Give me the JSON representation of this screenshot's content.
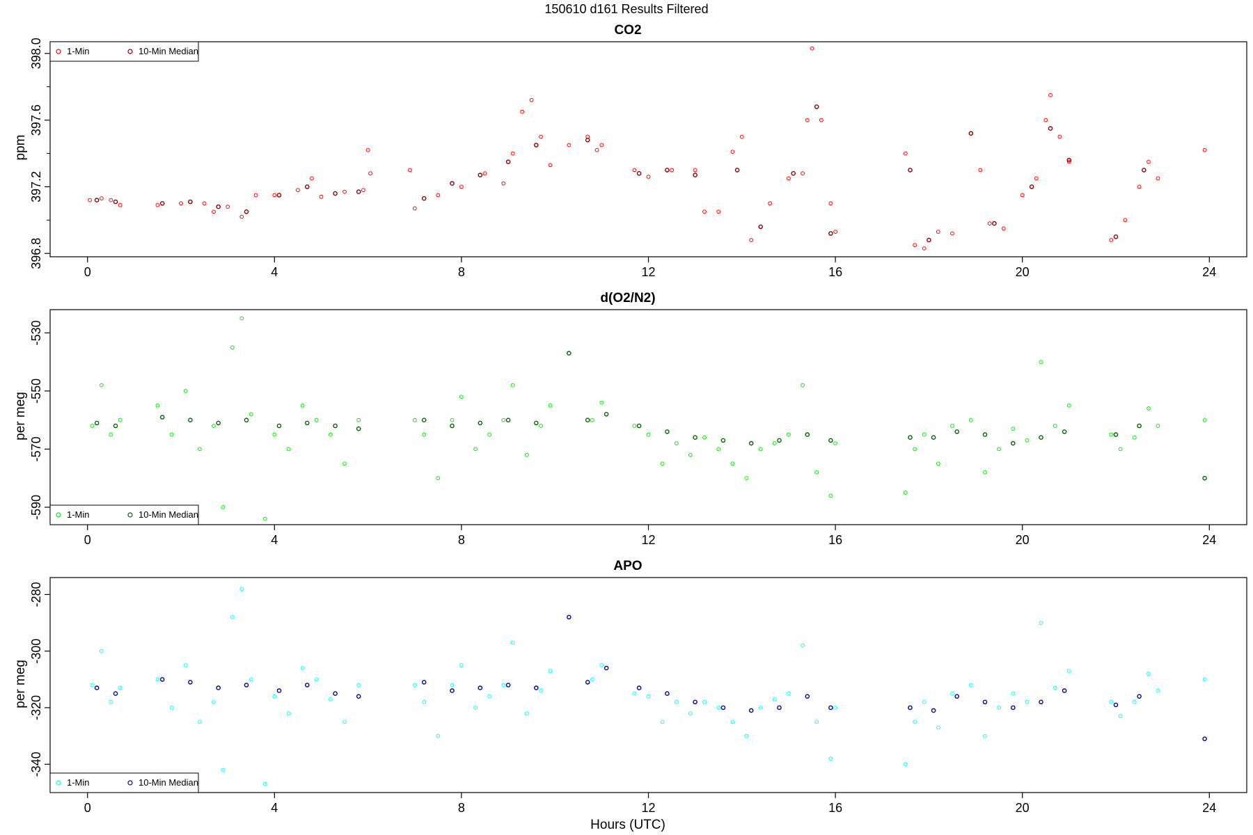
{
  "header": {
    "title": "150610   d161   Results Filtered"
  },
  "x_axis": {
    "label": "Hours (UTC)",
    "range": [
      -0.8,
      24.8
    ],
    "ticks": [
      0,
      4,
      8,
      12,
      16,
      20,
      24
    ]
  },
  "panels": [
    {
      "title": "CO2",
      "ylabel": "ppm",
      "yrange": [
        396.78,
        398.07
      ],
      "yticks": [
        396.8,
        397.2,
        397.6,
        398.0
      ],
      "ytick_labels": [
        "396.8",
        "397.2",
        "397.6",
        "398.0"
      ],
      "legend": {
        "position": "top-left",
        "items": [
          "1-Min",
          "10-Min Median"
        ]
      },
      "colors": {
        "raw": "#ff0000",
        "median": "#8b0000"
      }
    },
    {
      "title": "d(O2/N2)",
      "ylabel": "per meg",
      "yrange": [
        -596,
        -522
      ],
      "yticks": [
        -530,
        -550,
        -570,
        -590
      ],
      "ytick_labels": [
        "-530",
        "-550",
        "-570",
        "-590"
      ],
      "legend": {
        "position": "bottom-left",
        "items": [
          "1-Min",
          "10-Min Median"
        ]
      },
      "colors": {
        "raw": "#00ee00",
        "median": "#006400"
      }
    },
    {
      "title": "APO",
      "ylabel": "per meg",
      "yrange": [
        -350,
        -274
      ],
      "yticks": [
        -280,
        -300,
        -320,
        -340
      ],
      "ytick_labels": [
        "-280",
        "-300",
        "-320",
        "-340"
      ],
      "legend": {
        "position": "bottom-left",
        "items": [
          "1-Min",
          "10-Min Median"
        ]
      },
      "colors": {
        "raw": "#00ffff",
        "median": "#00008b"
      }
    }
  ],
  "chart_data": [
    {
      "type": "scatter",
      "title": "CO2",
      "ylabel": "ppm",
      "xlabel": "",
      "xlim": [
        -0.8,
        24.8
      ],
      "ylim": [
        396.78,
        398.07
      ],
      "series": [
        {
          "name": "1-Min",
          "color": "#ff0000",
          "x": [
            0.05,
            0.3,
            0.5,
            0.7,
            1.5,
            2.0,
            2.5,
            2.7,
            3.0,
            3.3,
            3.6,
            4.0,
            4.5,
            4.8,
            5.0,
            5.5,
            5.9,
            6.0,
            6.05,
            6.9,
            7.0,
            7.5,
            8.0,
            8.5,
            8.9,
            9.1,
            9.3,
            9.5,
            9.7,
            9.9,
            10.3,
            10.7,
            10.9,
            11.0,
            11.7,
            12.0,
            12.5,
            13.0,
            13.2,
            13.5,
            13.8,
            14.0,
            14.2,
            14.4,
            14.6,
            15.0,
            15.3,
            15.4,
            15.5,
            15.7,
            15.9,
            16.0,
            17.5,
            17.7,
            17.9,
            18.2,
            18.5,
            18.9,
            19.1,
            19.3,
            19.6,
            20.0,
            20.3,
            20.5,
            20.6,
            20.8,
            21.0,
            21.9,
            22.2,
            22.5,
            22.7,
            22.9,
            23.9
          ],
          "y": [
            397.12,
            397.13,
            397.12,
            397.09,
            397.09,
            397.1,
            397.1,
            397.05,
            397.08,
            397.02,
            397.15,
            397.15,
            397.18,
            397.25,
            397.14,
            397.17,
            397.18,
            397.42,
            397.28,
            397.3,
            397.07,
            397.15,
            397.2,
            397.28,
            397.22,
            397.4,
            397.65,
            397.72,
            397.5,
            397.33,
            397.45,
            397.5,
            397.42,
            397.45,
            397.3,
            397.26,
            397.3,
            397.3,
            397.05,
            397.05,
            397.41,
            397.5,
            396.88,
            396.96,
            397.1,
            397.25,
            397.28,
            397.6,
            398.03,
            397.6,
            397.1,
            396.93,
            397.4,
            396.85,
            396.83,
            396.93,
            396.92,
            397.52,
            397.3,
            396.98,
            396.95,
            397.15,
            397.25,
            397.6,
            397.75,
            397.5,
            397.35,
            396.88,
            397.0,
            397.2,
            397.35,
            397.25,
            397.42
          ]
        },
        {
          "name": "10-Min Median",
          "color": "#8b0000",
          "x": [
            0.2,
            0.6,
            1.6,
            2.2,
            2.8,
            3.4,
            4.1,
            4.7,
            5.3,
            5.8,
            7.2,
            7.8,
            8.4,
            9.0,
            9.6,
            10.7,
            11.8,
            12.4,
            13.0,
            13.9,
            14.4,
            15.1,
            15.6,
            15.9,
            17.6,
            18.0,
            18.9,
            19.4,
            20.2,
            20.6,
            21.0,
            22.0,
            22.6
          ],
          "y": [
            397.12,
            397.11,
            397.1,
            397.11,
            397.08,
            397.05,
            397.15,
            397.2,
            397.16,
            397.17,
            397.13,
            397.22,
            397.27,
            397.35,
            397.45,
            397.48,
            397.28,
            397.3,
            397.27,
            397.3,
            396.96,
            397.28,
            397.68,
            396.92,
            397.3,
            396.88,
            397.52,
            396.98,
            397.2,
            397.55,
            397.36,
            396.9,
            397.3
          ]
        }
      ]
    },
    {
      "type": "scatter",
      "title": "d(O2/N2)",
      "ylabel": "per meg",
      "xlabel": "",
      "xlim": [
        -0.8,
        24.8
      ],
      "ylim": [
        -596,
        -522
      ],
      "series": [
        {
          "name": "1-Min",
          "color": "#00ee00",
          "x": [
            0.1,
            0.3,
            0.5,
            0.7,
            1.5,
            1.8,
            2.1,
            2.4,
            2.7,
            2.9,
            3.1,
            3.3,
            3.5,
            3.8,
            4.0,
            4.3,
            4.6,
            4.9,
            5.2,
            5.5,
            5.8,
            7.0,
            7.2,
            7.5,
            7.8,
            8.0,
            8.3,
            8.6,
            8.9,
            9.1,
            9.4,
            9.7,
            9.9,
            10.8,
            11.0,
            11.7,
            12.0,
            12.3,
            12.6,
            12.9,
            13.2,
            13.5,
            13.8,
            14.1,
            14.4,
            14.7,
            15.0,
            15.3,
            15.6,
            15.9,
            16.0,
            17.5,
            17.7,
            17.9,
            18.2,
            18.5,
            18.9,
            19.2,
            19.5,
            19.8,
            20.1,
            20.4,
            20.7,
            21.0,
            21.9,
            22.1,
            22.4,
            22.7,
            22.9,
            23.9
          ],
          "y": [
            -562,
            -548,
            -565,
            -560,
            -555,
            -565,
            -550,
            -570,
            -562,
            -590,
            -535,
            -525,
            -558,
            -594,
            -565,
            -570,
            -555,
            -560,
            -565,
            -575,
            -560,
            -560,
            -565,
            -580,
            -560,
            -552,
            -570,
            -565,
            -560,
            -548,
            -572,
            -562,
            -555,
            -560,
            -554,
            -562,
            -565,
            -575,
            -568,
            -572,
            -566,
            -570,
            -575,
            -580,
            -570,
            -568,
            -565,
            -548,
            -578,
            -586,
            -568,
            -585,
            -570,
            -565,
            -575,
            -562,
            -560,
            -578,
            -570,
            -563,
            -567,
            -540,
            -562,
            -555,
            -565,
            -570,
            -566,
            -556,
            -562,
            -560
          ]
        },
        {
          "name": "10-Min Median",
          "color": "#006400",
          "x": [
            0.2,
            0.6,
            1.6,
            2.2,
            2.8,
            3.4,
            4.1,
            4.7,
            5.3,
            5.8,
            7.2,
            7.8,
            8.4,
            9.0,
            9.6,
            10.3,
            10.7,
            11.1,
            11.8,
            12.4,
            13.0,
            13.6,
            14.2,
            14.8,
            15.4,
            15.9,
            17.6,
            18.1,
            18.6,
            19.2,
            19.8,
            20.4,
            20.9,
            22.0,
            22.5,
            23.9
          ],
          "y": [
            -561,
            -562,
            -559,
            -560,
            -561,
            -560,
            -562,
            -561,
            -562,
            -563,
            -560,
            -562,
            -561,
            -560,
            -561,
            -537,
            -560,
            -558,
            -562,
            -564,
            -566,
            -567,
            -568,
            -567,
            -565,
            -567,
            -566,
            -566,
            -564,
            -565,
            -568,
            -566,
            -564,
            -565,
            -562,
            -580
          ]
        }
      ]
    },
    {
      "type": "scatter",
      "title": "APO",
      "ylabel": "per meg",
      "xlabel": "Hours (UTC)",
      "xlim": [
        -0.8,
        24.8
      ],
      "ylim": [
        -350,
        -274
      ],
      "series": [
        {
          "name": "1-Min",
          "color": "#00ffff",
          "x": [
            0.1,
            0.3,
            0.5,
            0.7,
            1.5,
            1.8,
            2.1,
            2.4,
            2.7,
            2.9,
            3.1,
            3.3,
            3.5,
            3.8,
            4.0,
            4.3,
            4.6,
            4.9,
            5.2,
            5.5,
            5.8,
            7.0,
            7.2,
            7.5,
            7.8,
            8.0,
            8.3,
            8.6,
            8.9,
            9.1,
            9.4,
            9.7,
            9.9,
            10.3,
            10.8,
            11.0,
            11.7,
            12.0,
            12.3,
            12.6,
            12.9,
            13.2,
            13.5,
            13.8,
            14.1,
            14.4,
            14.7,
            15.0,
            15.3,
            15.6,
            15.9,
            16.0,
            17.5,
            17.7,
            17.9,
            18.2,
            18.5,
            18.9,
            19.2,
            19.5,
            19.8,
            20.1,
            20.4,
            20.7,
            21.0,
            21.9,
            22.1,
            22.4,
            22.7,
            22.9,
            23.9
          ],
          "y": [
            -312,
            -300,
            -318,
            -313,
            -310,
            -320,
            -305,
            -325,
            -318,
            -342,
            -288,
            -278,
            -310,
            -347,
            -316,
            -322,
            -306,
            -310,
            -317,
            -325,
            -312,
            -312,
            -318,
            -330,
            -312,
            -305,
            -320,
            -316,
            -312,
            -297,
            -322,
            -314,
            -307,
            -288,
            -310,
            -305,
            -315,
            -316,
            -325,
            -318,
            -322,
            -318,
            -320,
            -325,
            -330,
            -320,
            -317,
            -315,
            -298,
            -325,
            -338,
            -320,
            -340,
            -325,
            -318,
            -327,
            -315,
            -312,
            -330,
            -320,
            -315,
            -318,
            -290,
            -313,
            -307,
            -318,
            -323,
            -318,
            -308,
            -314,
            -310
          ]
        },
        {
          "name": "10-Min Median",
          "color": "#00008b",
          "x": [
            0.2,
            0.6,
            1.6,
            2.2,
            2.8,
            3.4,
            4.1,
            4.7,
            5.3,
            5.8,
            7.2,
            7.8,
            8.4,
            9.0,
            9.6,
            10.3,
            10.7,
            11.1,
            11.8,
            12.4,
            13.0,
            13.6,
            14.2,
            14.8,
            15.4,
            15.9,
            17.6,
            18.1,
            18.6,
            19.2,
            19.8,
            20.4,
            20.9,
            22.0,
            22.5,
            23.9
          ],
          "y": [
            -313,
            -315,
            -310,
            -311,
            -313,
            -312,
            -314,
            -312,
            -315,
            -316,
            -311,
            -314,
            -313,
            -312,
            -313,
            -288,
            -311,
            -306,
            -313,
            -315,
            -318,
            -320,
            -321,
            -320,
            -316,
            -320,
            -320,
            -321,
            -316,
            -318,
            -320,
            -318,
            -314,
            -319,
            -316,
            -331
          ]
        }
      ]
    }
  ]
}
